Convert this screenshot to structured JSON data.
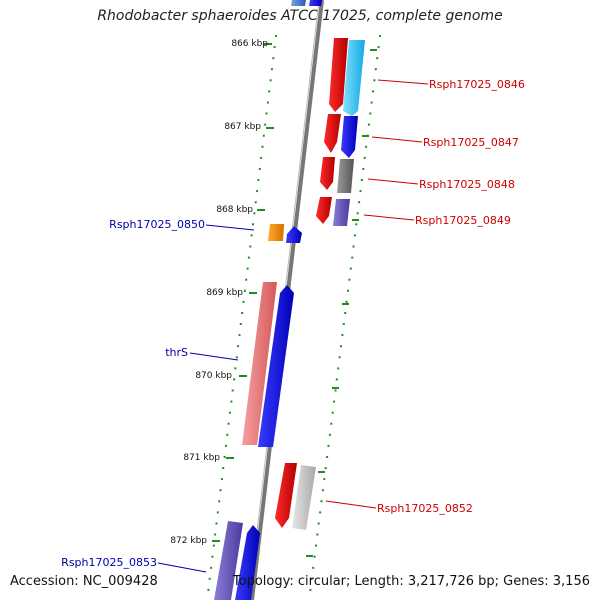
{
  "title": "Rhodobacter sphaeroides ATCC 17025, complete genome",
  "footer": {
    "accession": "Accession: NC_009428",
    "topology": "Topology: circular; Length: 3,217,726 bp; Genes: 3,156"
  },
  "ticks": [
    "866 kbp",
    "867 kbp",
    "868 kbp",
    "869 kbp",
    "870 kbp",
    "871 kbp",
    "872 kbp"
  ],
  "genes": [
    {
      "id": "Rsph17025_0846",
      "strand": "plus"
    },
    {
      "id": "Rsph17025_0847",
      "strand": "plus"
    },
    {
      "id": "Rsph17025_0848",
      "strand": "plus"
    },
    {
      "id": "Rsph17025_0849",
      "strand": "plus"
    },
    {
      "id": "Rsph17025_0850",
      "strand": "minus"
    },
    {
      "id": "thrS",
      "strand": "minus"
    },
    {
      "id": "Rsph17025_0852",
      "strand": "plus"
    },
    {
      "id": "Rsph17025_0853",
      "strand": "minus"
    }
  ],
  "colors": {
    "plus_label": "#cc0000",
    "minus_label": "#0000aa",
    "backbone": "#777777",
    "tick_marks": "#228b22"
  }
}
